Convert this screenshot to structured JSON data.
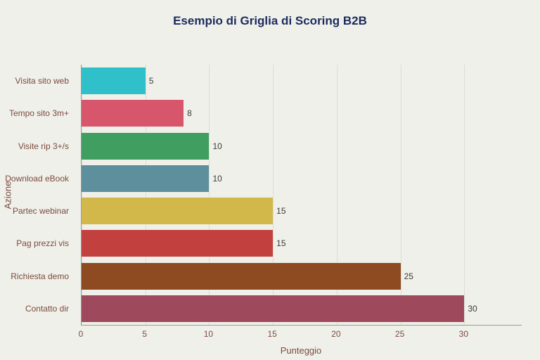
{
  "chart_data": {
    "type": "bar",
    "orientation": "horizontal",
    "title": "Esempio di Griglia di Scoring B2B",
    "xlabel": "Punteggio",
    "ylabel": "Azione",
    "categories": [
      "Visita sito web",
      "Tempo sito 3m+",
      "Visite rip 3+/s",
      "Download eBook",
      "Partec webinar",
      "Pag prezzi vis",
      "Richiesta demo",
      "Contatto dir"
    ],
    "values": [
      5,
      8,
      10,
      10,
      15,
      15,
      25,
      30
    ],
    "bar_colors": [
      "#2fc0c9",
      "#d8566b",
      "#3f9e60",
      "#5d8f9d",
      "#d2b84b",
      "#c2413e",
      "#8e4a21",
      "#9e4a5c"
    ],
    "xticks": [
      0,
      5,
      10,
      15,
      20,
      25,
      30
    ],
    "xlim": [
      0,
      34.5
    ],
    "grid": true,
    "legend": false
  },
  "colors": {
    "background": "#eff0e9",
    "title_text": "#1c2b5e",
    "axis_text": "#7c4b41",
    "value_label_text": "#3b3b3b",
    "gridline": "#dcded4",
    "axis_line": "#9b9d94"
  }
}
